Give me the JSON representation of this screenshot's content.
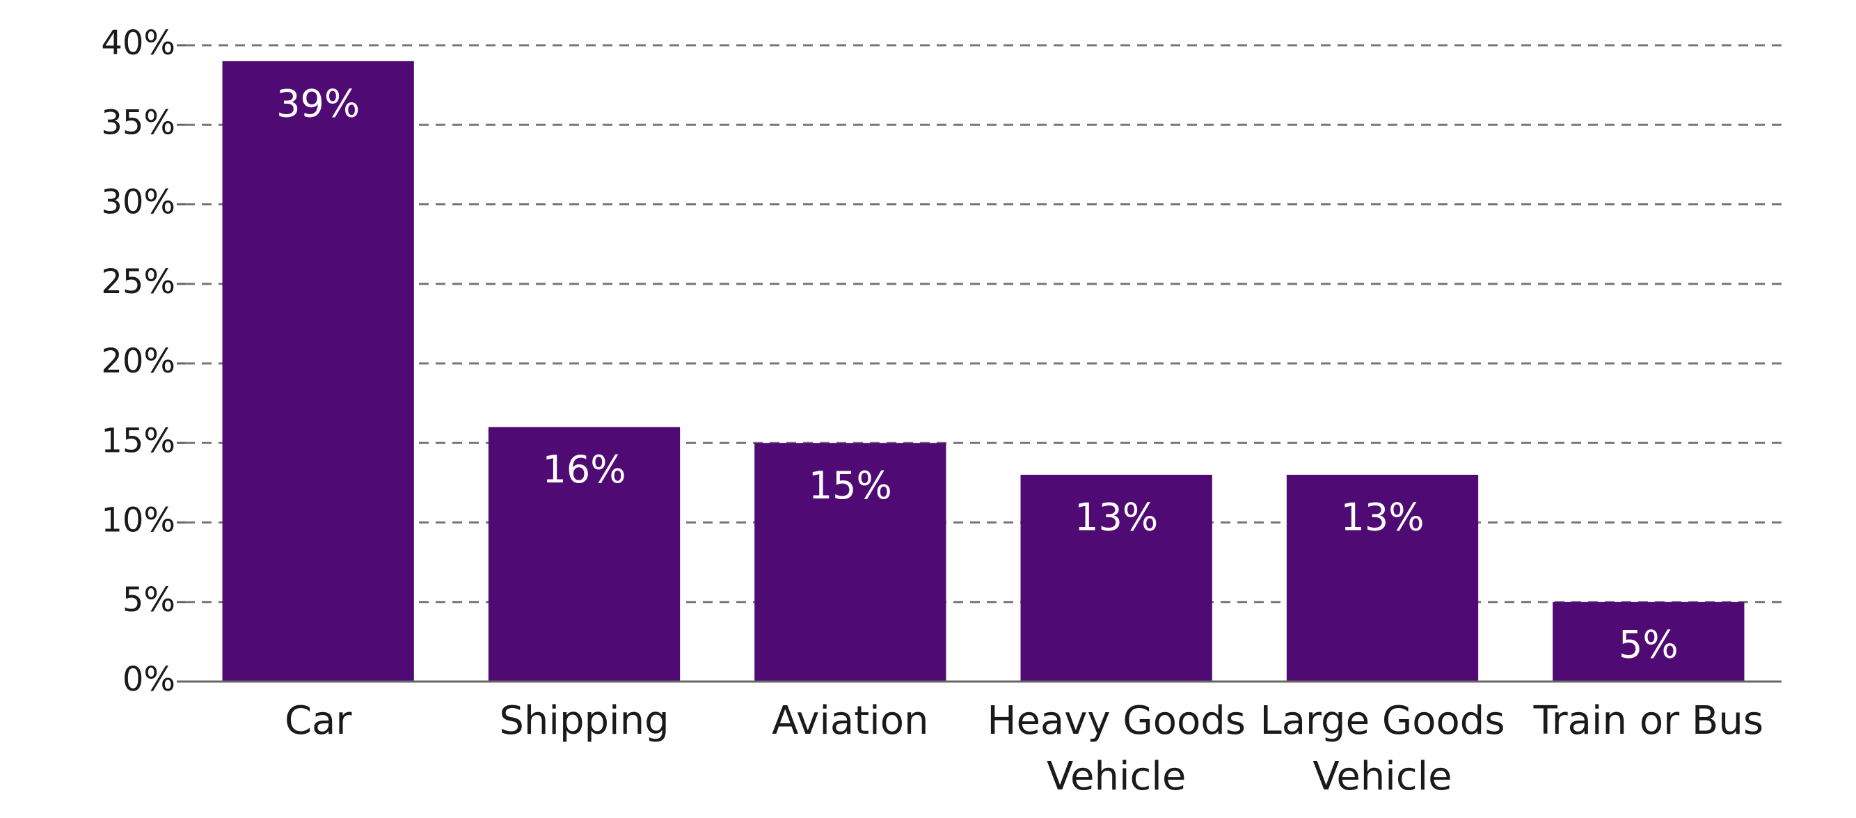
{
  "chart_data": {
    "type": "bar",
    "categories": [
      "Car",
      "Shipping",
      "Aviation",
      "Heavy Goods Vehicle",
      "Large Goods Vehicle",
      "Train or Bus"
    ],
    "values": [
      39,
      16,
      15,
      13,
      13,
      5
    ],
    "value_labels": [
      "39%",
      "16%",
      "15%",
      "13%",
      "13%",
      "5%"
    ],
    "color": "#500a73",
    "ylim": [
      0,
      40
    ],
    "yticks": [
      {
        "value": 0,
        "label": "0%"
      },
      {
        "value": 5,
        "label": "5%"
      },
      {
        "value": 10,
        "label": "10%"
      },
      {
        "value": 15,
        "label": "15%"
      },
      {
        "value": 20,
        "label": "20%"
      },
      {
        "value": 25,
        "label": "25%"
      },
      {
        "value": 30,
        "label": "30%"
      },
      {
        "value": 35,
        "label": "35%"
      },
      {
        "value": 40,
        "label": "40%"
      }
    ],
    "grid": true
  }
}
